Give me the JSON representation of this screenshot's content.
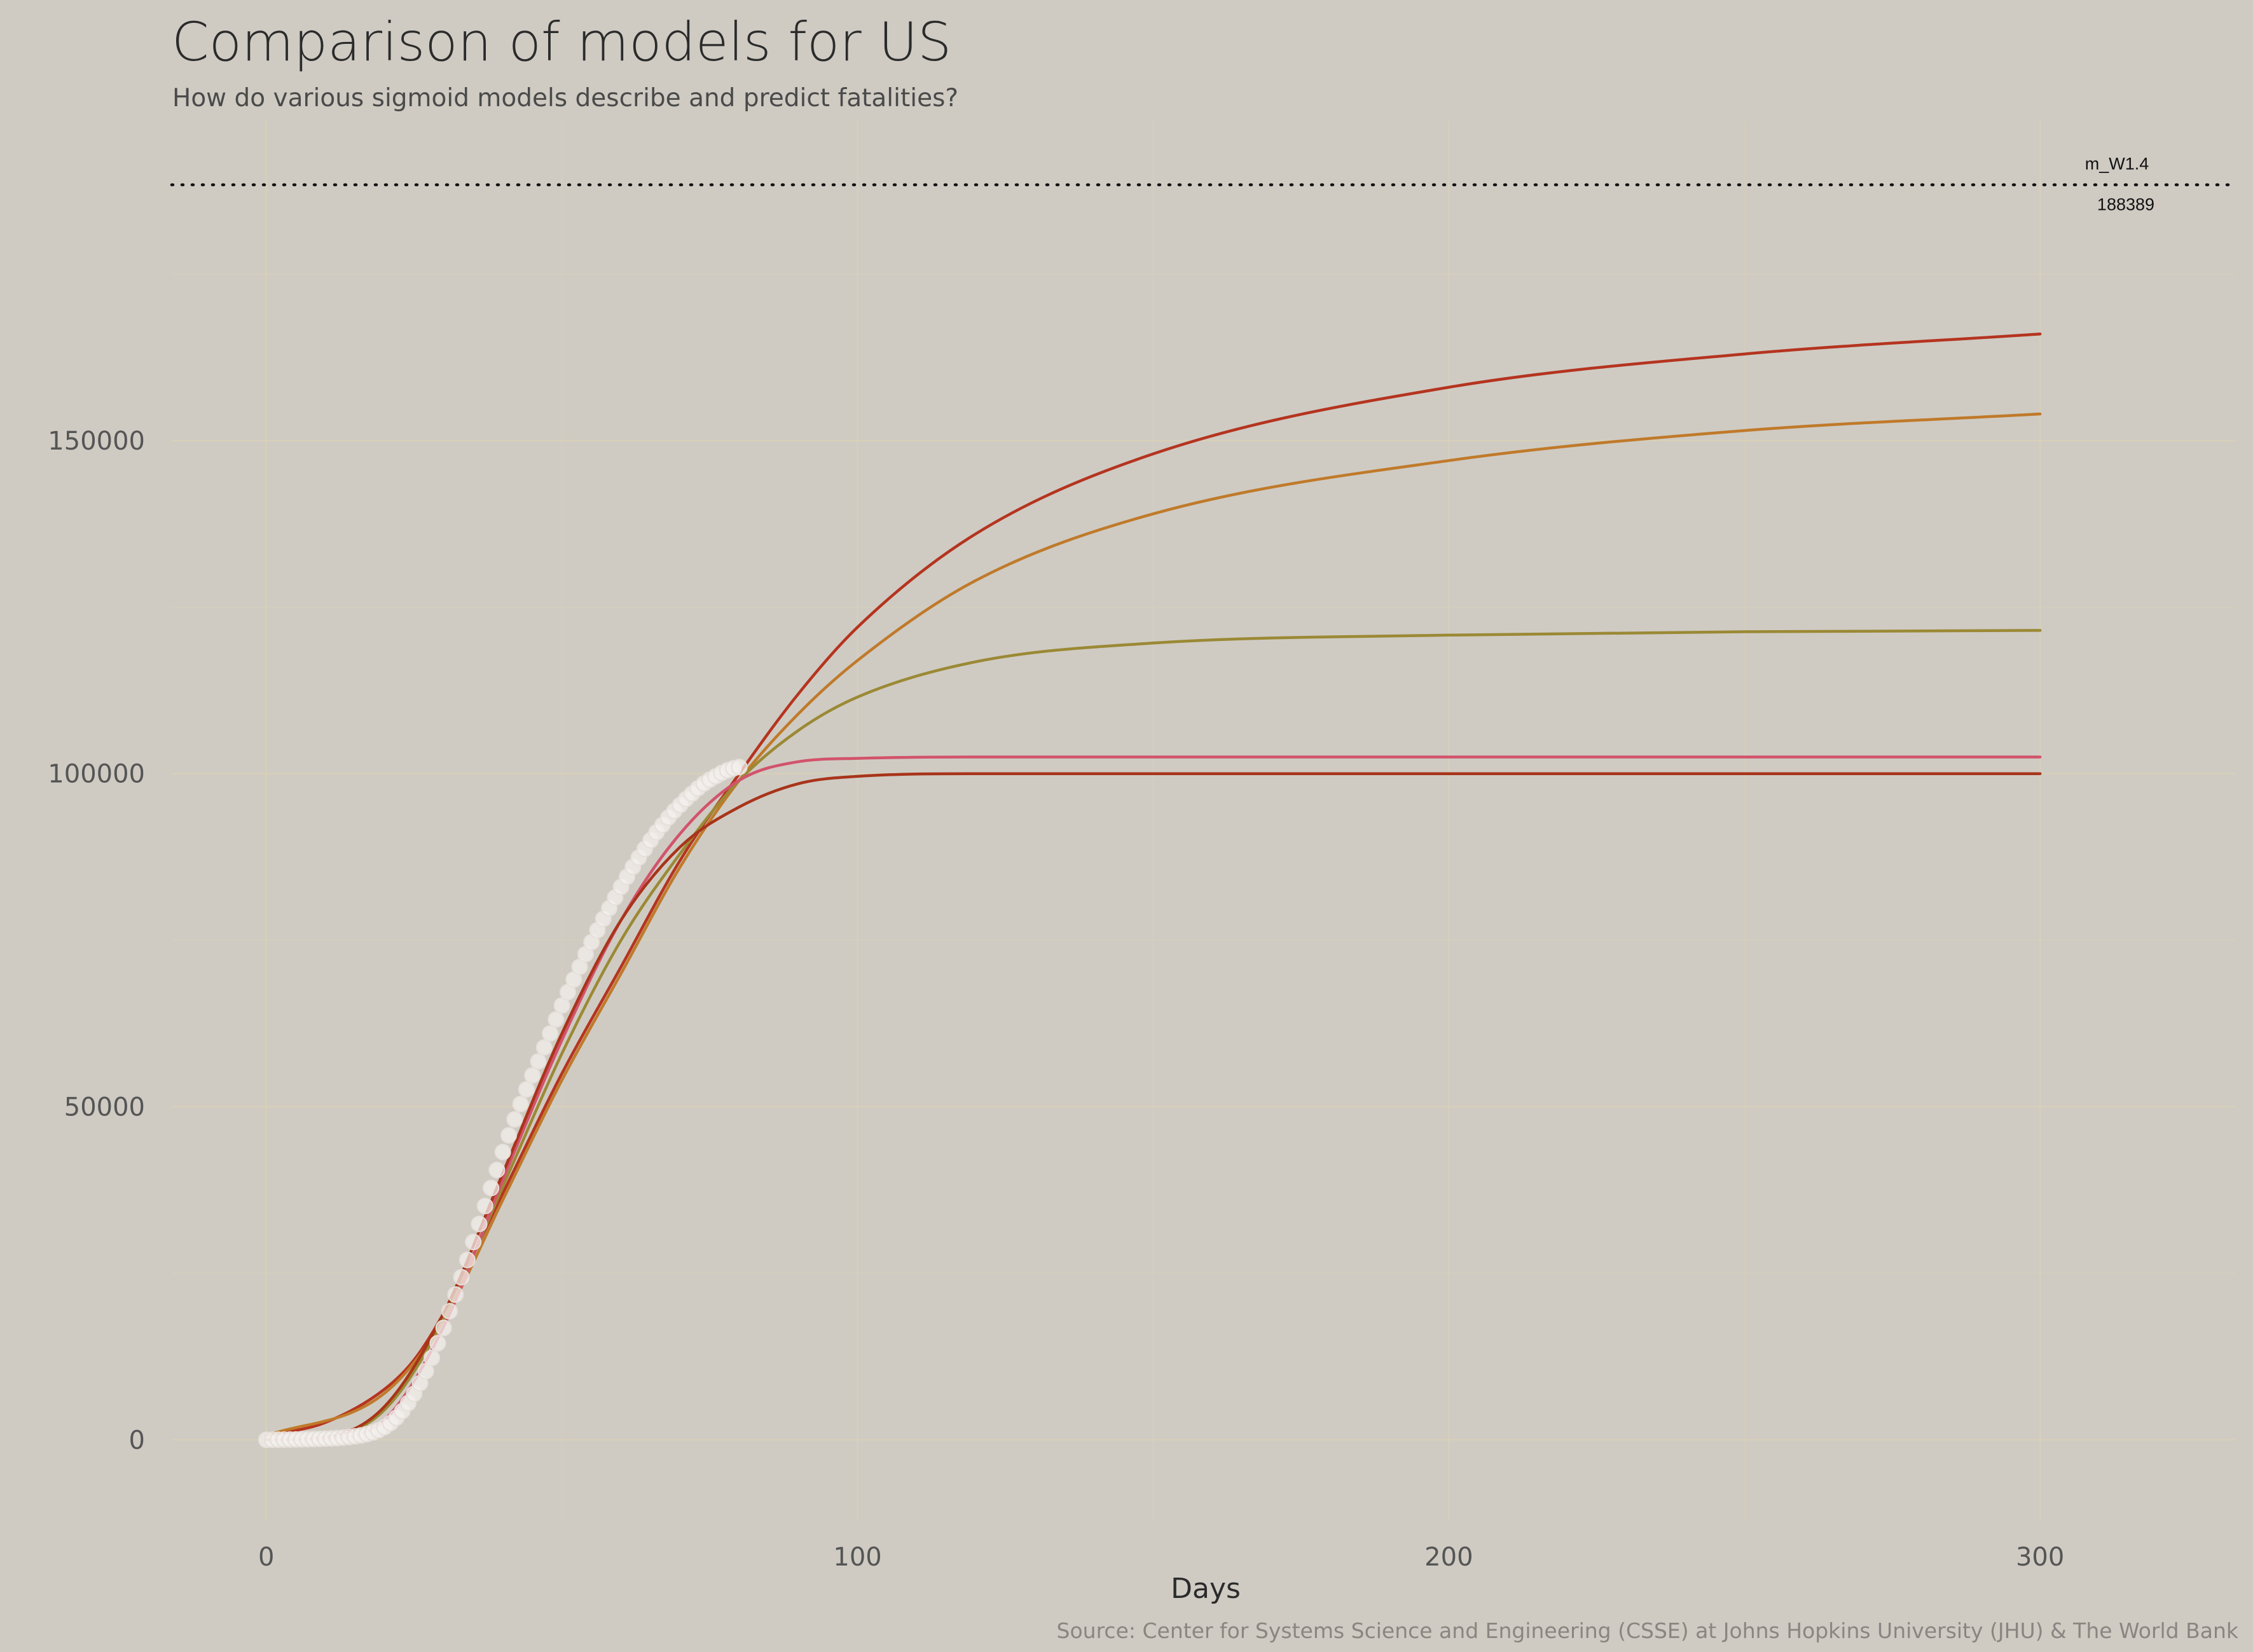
{
  "chart_data": {
    "type": "line",
    "title": "Comparison of models for US",
    "subtitle": "How do various sigmoid models describe and predict fatalities?",
    "xlabel": "Days",
    "ylabel": "",
    "caption": "Source: Center for Systems Science and Engineering (CSSE) at Johns Hopkins University (JHU) & The World Bank",
    "xlim": [
      -16,
      333
    ],
    "ylim": [
      -12000,
      198000
    ],
    "x_ticks": [
      0,
      100,
      200,
      300
    ],
    "y_ticks": [
      0,
      50000,
      100000,
      150000
    ],
    "grid": true,
    "legend": "none",
    "colors": {
      "background": "#cfcbc3",
      "observed_points": "#f4f1ee"
    },
    "reference_line": {
      "label": "m_W1.4",
      "value": 188389,
      "value_label": "188389",
      "style": "dotted"
    },
    "series": [
      {
        "color": "#b5341f",
        "x": [
          0,
          10,
          20,
          25,
          30,
          40,
          50,
          60,
          70,
          80,
          90,
          100,
          120,
          150,
          200,
          250,
          300
        ],
        "y": [
          600,
          2600,
          7600,
          12000,
          19000,
          37000,
          55000,
          71000,
          87000,
          100000,
          112000,
          122000,
          136000,
          148000,
          158000,
          163000,
          166000
        ]
      },
      {
        "color": "#c07a2a",
        "x": [
          0,
          20,
          30,
          40,
          50,
          60,
          70,
          80,
          90,
          100,
          120,
          150,
          200,
          250,
          300
        ],
        "y": [
          600,
          7000,
          18000,
          36000,
          54000,
          70000,
          86000,
          99000,
          109000,
          117000,
          129000,
          139000,
          147000,
          151500,
          154000
        ]
      },
      {
        "color": "#9b8935",
        "x": [
          0,
          10,
          20,
          30,
          40,
          50,
          60,
          70,
          80,
          90,
          100,
          120,
          150,
          200,
          250,
          300
        ],
        "y": [
          0,
          400,
          4500,
          18000,
          38000,
          58000,
          75000,
          88000,
          99000,
          106500,
          111500,
          116800,
          119600,
          120800,
          121300,
          121500
        ]
      },
      {
        "color": "#d2536b",
        "x": [
          0,
          10,
          20,
          30,
          40,
          50,
          60,
          70,
          80,
          90,
          100,
          120,
          150,
          200,
          300
        ],
        "y": [
          0,
          200,
          3000,
          17000,
          39000,
          60000,
          78000,
          91000,
          99000,
          101800,
          102300,
          102500,
          102500,
          102500,
          102500
        ]
      },
      {
        "color": "#a8341a",
        "x": [
          0,
          10,
          20,
          30,
          40,
          50,
          60,
          70,
          80,
          90,
          100,
          120,
          150,
          200,
          300
        ],
        "y": [
          0,
          400,
          5000,
          19000,
          40000,
          61000,
          78000,
          89000,
          95000,
          98500,
          99600,
          100000,
          100000,
          100000,
          100000
        ]
      }
    ],
    "observed": {
      "x": [
        0,
        1,
        2,
        3,
        4,
        5,
        6,
        7,
        8,
        9,
        10,
        11,
        12,
        13,
        14,
        15,
        16,
        17,
        18,
        19,
        20,
        21,
        22,
        23,
        24,
        25,
        26,
        27,
        28,
        29,
        30,
        31,
        32,
        33,
        34,
        35,
        36,
        37,
        38,
        39,
        40,
        41,
        42,
        43,
        44,
        45,
        46,
        47,
        48,
        49,
        50,
        51,
        52,
        53,
        54,
        55,
        56,
        57,
        58,
        59,
        60,
        61,
        62,
        63,
        64,
        65,
        66,
        67,
        68,
        69,
        70,
        71,
        72,
        73,
        74,
        75,
        76,
        77,
        78,
        79,
        80
      ],
      "y": [
        0,
        10,
        20,
        30,
        40,
        55,
        70,
        90,
        110,
        140,
        170,
        210,
        260,
        330,
        410,
        520,
        660,
        850,
        1100,
        1450,
        1900,
        2500,
        3300,
        4300,
        5500,
        6900,
        8500,
        10300,
        12300,
        14500,
        16800,
        19300,
        21800,
        24400,
        27000,
        29700,
        32400,
        35100,
        37800,
        40500,
        43200,
        45700,
        48100,
        50400,
        52600,
        54700,
        56800,
        58900,
        61000,
        63100,
        65200,
        67200,
        69100,
        71000,
        72900,
        74700,
        76500,
        78200,
        79800,
        81400,
        83000,
        84500,
        86000,
        87400,
        88700,
        90000,
        91200,
        92300,
        93400,
        94400,
        95300,
        96200,
        97000,
        97800,
        98500,
        99100,
        99600,
        100100,
        100500,
        100800,
        101000
      ]
    }
  }
}
